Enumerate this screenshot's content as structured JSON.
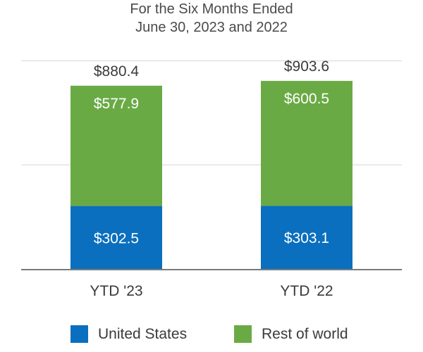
{
  "chart_data": {
    "type": "bar",
    "stacked": true,
    "title": [
      "For the Six Months Ended",
      "June 30, 2023 and 2022"
    ],
    "categories": [
      "YTD '23",
      "YTD '22"
    ],
    "series": [
      {
        "name": "United States",
        "color": "#0a6fbe",
        "values": [
          302.5,
          303.1
        ],
        "labels": [
          "$302.5",
          "$303.1"
        ]
      },
      {
        "name": "Rest of world",
        "color": "#6aaa45",
        "values": [
          577.9,
          600.5
        ],
        "labels": [
          "$577.9",
          "$600.5"
        ]
      }
    ],
    "totals": [
      880.4,
      903.6
    ],
    "total_labels": [
      "$880.4",
      "$903.6"
    ],
    "ylim": [
      0,
      1200
    ],
    "grid": true,
    "legend_position": "bottom"
  }
}
